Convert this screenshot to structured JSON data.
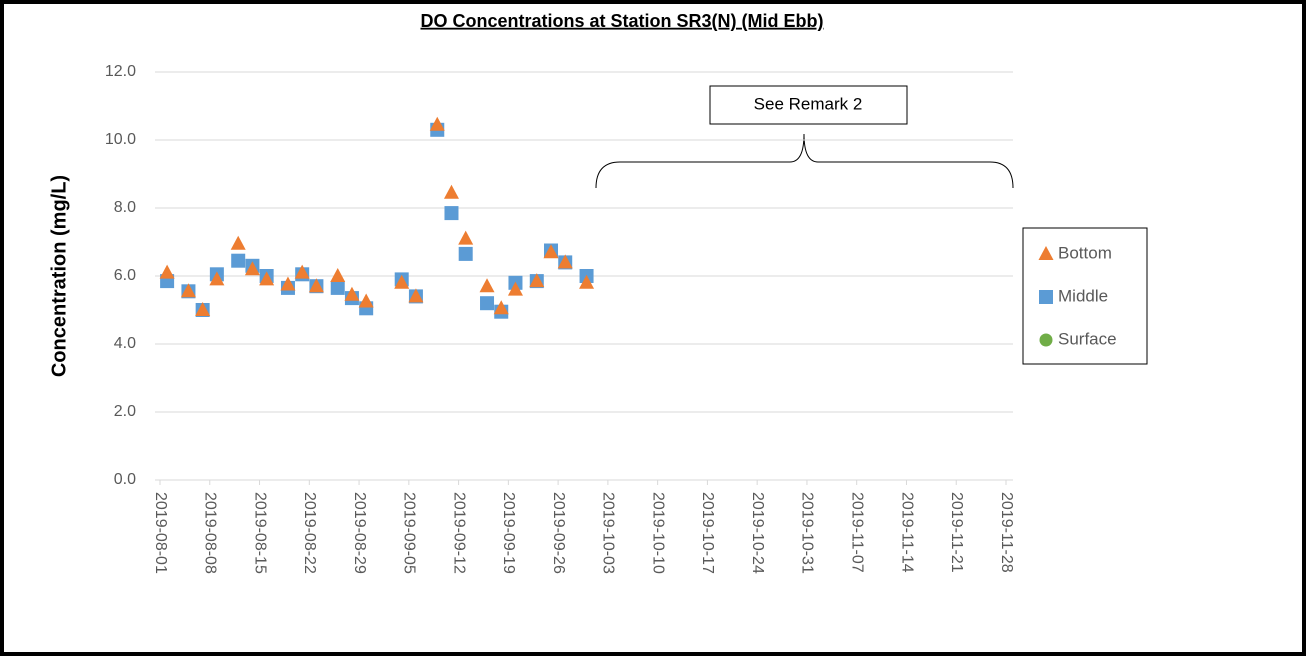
{
  "chart_data": {
    "type": "scatter",
    "title": "DO Concentrations at Station SR3(N) (Mid Ebb)",
    "y_label": "Concentration (mg/L)",
    "annotation": "See Remark 2",
    "x": [
      "2019-08-02",
      "2019-08-05",
      "2019-08-07",
      "2019-08-09",
      "2019-08-12",
      "2019-08-14",
      "2019-08-16",
      "2019-08-19",
      "2019-08-21",
      "2019-08-23",
      "2019-08-26",
      "2019-08-28",
      "2019-08-30",
      "2019-09-04",
      "2019-09-06",
      "2019-09-09",
      "2019-09-11",
      "2019-09-13",
      "2019-09-16",
      "2019-09-18",
      "2019-09-20",
      "2019-09-23",
      "2019-09-25",
      "2019-09-27",
      "2019-09-30"
    ],
    "series": [
      {
        "name": "Bottom",
        "color": "#ed7d31",
        "marker": "triangle",
        "values": [
          6.1,
          5.55,
          5.0,
          5.9,
          6.95,
          6.2,
          5.9,
          5.75,
          6.1,
          5.7,
          6.0,
          5.45,
          5.25,
          5.8,
          5.4,
          10.45,
          8.45,
          7.1,
          5.7,
          5.05,
          5.6,
          5.85,
          6.7,
          6.4,
          5.8
        ]
      },
      {
        "name": "Middle",
        "color": "#5b9bd5",
        "marker": "square",
        "values": [
          5.85,
          5.55,
          5.0,
          6.05,
          6.45,
          6.3,
          6.0,
          5.65,
          6.05,
          5.7,
          5.65,
          5.35,
          5.05,
          5.9,
          5.4,
          10.3,
          7.85,
          6.65,
          5.2,
          4.95,
          5.8,
          5.85,
          6.75,
          6.4,
          6.0
        ]
      },
      {
        "name": "Surface",
        "color": "#70ad47",
        "marker": "circle",
        "values": [
          5.85,
          5.55,
          5.0,
          6.05,
          6.45,
          6.3,
          6.0,
          5.65,
          6.05,
          5.7,
          5.65,
          5.35,
          5.05,
          5.9,
          5.4,
          10.3,
          7.85,
          6.65,
          5.2,
          4.95,
          5.8,
          5.85,
          6.75,
          6.4,
          6.0
        ]
      }
    ],
    "xlim": [
      "2019-08-01",
      "2019-11-29"
    ],
    "xticks": [
      "2019-08-01",
      "2019-08-08",
      "2019-08-15",
      "2019-08-22",
      "2019-08-29",
      "2019-09-05",
      "2019-09-12",
      "2019-09-19",
      "2019-09-26",
      "2019-10-03",
      "2019-10-10",
      "2019-10-17",
      "2019-10-24",
      "2019-10-31",
      "2019-11-07",
      "2019-11-14",
      "2019-11-21",
      "2019-11-28"
    ],
    "ylim": [
      0,
      12
    ],
    "yticks": [
      {
        "value": 0,
        "label": "0.0"
      },
      {
        "value": 2,
        "label": "2.0"
      },
      {
        "value": 4,
        "label": "4.0"
      },
      {
        "value": 6,
        "label": "6.0"
      },
      {
        "value": 8,
        "label": "8.0"
      },
      {
        "value": 10,
        "label": "10.0"
      },
      {
        "value": 12,
        "label": "12.0"
      }
    ],
    "grid": true,
    "legend": "right"
  }
}
